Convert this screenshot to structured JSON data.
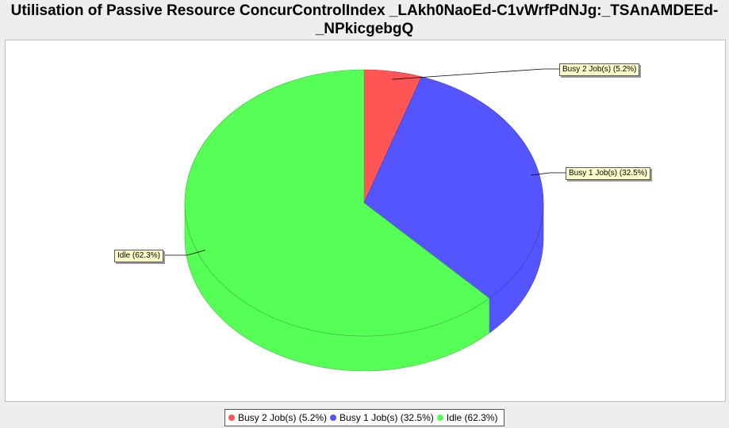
{
  "chart_data": {
    "type": "pie",
    "title": "Utilisation of Passive Resource ConcurControlIndex _LAkh0NaoEd-C1vWrfPdNJg:_TSAnAMDEEd-_NPkicgebgQ",
    "title_line1": "Utilisation of Passive Resource ConcurControlIndex _LAkh0NaoEd-C1vWrfPdNJg:_TSAnAMDEEd-",
    "title_line2": "_NPkicgebgQ",
    "slices": [
      {
        "name": "Busy 2 Job(s)",
        "value": 5.2,
        "label": "Busy 2 Job(s) (5.2%)",
        "color": "#ff5555"
      },
      {
        "name": "Busy 1 Job(s)",
        "value": 32.5,
        "label": "Busy 1 Job(s) (32.5%)",
        "color": "#5555ff"
      },
      {
        "name": "Idle",
        "value": 62.3,
        "label": "Idle (62.3%)",
        "color": "#55ff55"
      }
    ],
    "legend_position": "bottom",
    "style": "3d"
  }
}
